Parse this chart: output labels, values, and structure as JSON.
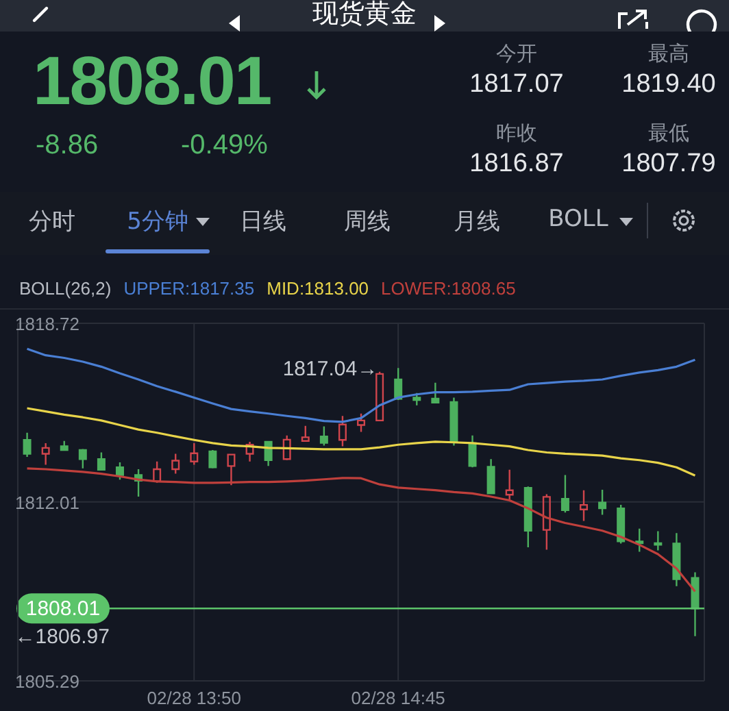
{
  "chart_data": {
    "type": "candlestick",
    "title": "现货黄金",
    "legend_title": "BOLL(26,2)",
    "categories": [
      null,
      null,
      null,
      null,
      null,
      null,
      null,
      null,
      null,
      "02/28 13:50",
      null,
      null,
      null,
      null,
      null,
      null,
      null,
      null,
      null,
      null,
      "02/28 14:45",
      null,
      null,
      null,
      null,
      null,
      null,
      null,
      null,
      null,
      null,
      null,
      null,
      null,
      null,
      null,
      null
    ],
    "ohlc": [
      [
        1814.34,
        1814.61,
        1813.7,
        1813.82
      ],
      [
        1813.82,
        1814.22,
        1813.41,
        1814.04
      ],
      [
        1814.1,
        1814.3,
        1813.93,
        1813.96
      ],
      [
        1813.96,
        1814.0,
        1813.27,
        1813.62
      ],
      [
        1813.62,
        1813.87,
        1813.19,
        1813.22
      ],
      [
        1813.31,
        1813.5,
        1812.85,
        1813.02
      ],
      [
        1813.02,
        1813.24,
        1812.21,
        1812.81
      ],
      [
        1812.79,
        1813.53,
        1812.73,
        1813.24
      ],
      [
        1813.24,
        1813.82,
        1813.07,
        1813.56
      ],
      [
        1813.53,
        1814.22,
        1813.41,
        1813.84
      ],
      [
        1813.91,
        1813.96,
        1813.27,
        1813.31
      ],
      [
        1813.36,
        1813.82,
        1812.64,
        1813.79
      ],
      [
        1813.82,
        1814.27,
        1813.53,
        1814.16
      ],
      [
        1814.27,
        1814.3,
        1813.36,
        1813.58
      ],
      [
        1813.62,
        1814.51,
        1813.58,
        1814.35
      ],
      [
        1814.3,
        1814.87,
        1814.27,
        1814.44
      ],
      [
        1814.47,
        1814.85,
        1814.13,
        1814.23
      ],
      [
        1814.34,
        1815.24,
        1814.1,
        1814.92
      ],
      [
        1814.9,
        1815.33,
        1814.64,
        1815.07
      ],
      [
        1815.07,
        1816.9,
        1815.04,
        1816.82
      ],
      [
        1816.61,
        1817.04,
        1815.84,
        1815.88
      ],
      [
        1815.93,
        1816.1,
        1815.64,
        1815.84
      ],
      [
        1815.89,
        1816.49,
        1815.71,
        1815.74
      ],
      [
        1815.76,
        1815.93,
        1814.13,
        1814.27
      ],
      [
        1814.22,
        1814.51,
        1813.31,
        1813.36
      ],
      [
        1813.33,
        1813.62,
        1812.3,
        1812.33
      ],
      [
        1812.28,
        1813.22,
        1812.11,
        1812.45
      ],
      [
        1812.54,
        1812.59,
        1810.31,
        1810.93
      ],
      [
        1810.96,
        1812.3,
        1810.22,
        1812.2
      ],
      [
        1812.13,
        1813.02,
        1811.61,
        1811.7
      ],
      [
        1811.73,
        1812.45,
        1811.3,
        1811.9
      ],
      [
        1811.99,
        1812.47,
        1811.53,
        1811.77
      ],
      [
        1811.77,
        1811.9,
        1810.45,
        1810.53
      ],
      [
        1810.53,
        1811.01,
        1810.14,
        1810.46
      ],
      [
        1810.46,
        1810.91,
        1810.19,
        1810.4
      ],
      [
        1810.45,
        1810.84,
        1808.85,
        1809.11
      ],
      [
        1809.16,
        1809.37,
        1806.97,
        1808.01
      ]
    ],
    "colors": [
      "#4cb05e",
      "#d0454c",
      "#4cb05e",
      "#4cb05e",
      "#4cb05e",
      "#4cb05e",
      "#4cb05e",
      "#d0454c",
      "#d0454c",
      "#d0454c",
      "#4cb05e",
      "#d0454c",
      "#d0454c",
      "#4cb05e",
      "#d0454c",
      "#d0454c",
      "#4cb05e",
      "#d0454c",
      "#d0454c",
      "#d0454c",
      "#4cb05e",
      "#4cb05e",
      "#4cb05e",
      "#4cb05e",
      "#4cb05e",
      "#4cb05e",
      "#d0454c",
      "#4cb05e",
      "#d0454c",
      "#4cb05e",
      "#d0454c",
      "#4cb05e",
      "#4cb05e",
      "#4cb05e",
      "#4cb05e",
      "#4cb05e",
      "#4cb05e"
    ],
    "series": [
      {
        "name": "UPPER:1817.35",
        "type": "line",
        "color": "#4a7fd4",
        "values": [
          1817.76,
          1817.52,
          1817.42,
          1817.28,
          1817.09,
          1816.84,
          1816.61,
          1816.36,
          1816.15,
          1815.93,
          1815.71,
          1815.5,
          1815.41,
          1815.33,
          1815.24,
          1815.16,
          1815.05,
          1815.02,
          1815.16,
          1815.64,
          1815.93,
          1816.05,
          1816.13,
          1816.13,
          1816.15,
          1816.19,
          1816.22,
          1816.43,
          1816.48,
          1816.53,
          1816.56,
          1816.61,
          1816.75,
          1816.87,
          1816.96,
          1817.09,
          1817.35
        ]
      },
      {
        "name": "MID:1813.00",
        "type": "line",
        "color": "#e8d44a",
        "values": [
          1815.53,
          1815.41,
          1815.29,
          1815.19,
          1815.07,
          1814.9,
          1814.73,
          1814.61,
          1814.47,
          1814.34,
          1814.22,
          1814.13,
          1814.1,
          1814.04,
          1814.03,
          1814.01,
          1813.99,
          1813.99,
          1813.99,
          1814.06,
          1814.16,
          1814.22,
          1814.27,
          1814.25,
          1814.22,
          1814.16,
          1814.1,
          1813.96,
          1813.87,
          1813.82,
          1813.79,
          1813.75,
          1813.65,
          1813.58,
          1813.48,
          1813.31,
          1813.0
        ]
      },
      {
        "name": "LOWER:1808.65",
        "type": "line",
        "color": "#c0403c",
        "values": [
          1813.27,
          1813.24,
          1813.19,
          1813.14,
          1813.07,
          1812.97,
          1812.85,
          1812.78,
          1812.76,
          1812.73,
          1812.73,
          1812.74,
          1812.76,
          1812.76,
          1812.78,
          1812.81,
          1812.86,
          1812.91,
          1812.9,
          1812.67,
          1812.55,
          1812.5,
          1812.45,
          1812.38,
          1812.33,
          1812.21,
          1812.07,
          1811.77,
          1811.42,
          1811.22,
          1811.08,
          1810.93,
          1810.7,
          1810.4,
          1810.05,
          1809.51,
          1808.65
        ]
      }
    ],
    "ylim": [
      1805.29,
      1818.72
    ],
    "yticks": [
      1805.29,
      1812.01,
      1818.72
    ],
    "grid": true,
    "legend": "top left",
    "ref_lines": [
      {
        "axis": "y",
        "value": 1808.01,
        "label": "1808.01",
        "color": "#5cc46a"
      }
    ],
    "annotations": [
      "1808.01",
      "-8.86",
      "-0.49%",
      "今开",
      "1817.07",
      "最高",
      "1819.40",
      "昨收",
      "1816.87",
      "最低",
      "1807.79",
      "分时",
      "5分钟",
      "日线",
      "周线",
      "月线",
      "BOLL",
      {
        "text": "1817.04→",
        "x": "02/28 14:45",
        "y": 1817.04
      },
      "←1806.97"
    ]
  }
}
